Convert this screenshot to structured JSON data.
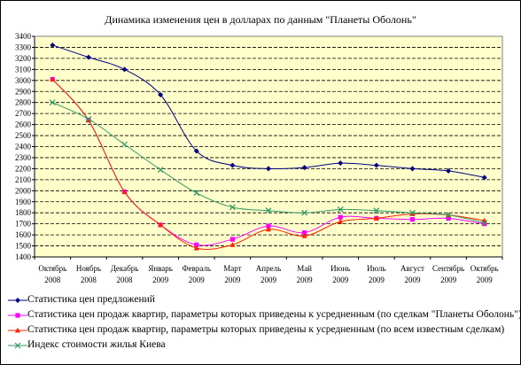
{
  "chart_data": {
    "type": "line",
    "title": "Динамика изменения цен в долларах по данным \"Планеты Оболонь\"",
    "categories": [
      [
        "Октябрь",
        "2008"
      ],
      [
        "Ноябрь",
        "2008"
      ],
      [
        "Декабрь",
        "2008"
      ],
      [
        "Январь",
        "2009"
      ],
      [
        "Февраль",
        "2009"
      ],
      [
        "Март",
        "2009"
      ],
      [
        "Апрель",
        "2009"
      ],
      [
        "Май",
        "2009"
      ],
      [
        "Июнь",
        "2009"
      ],
      [
        "Июль",
        "2009"
      ],
      [
        "Август",
        "2009"
      ],
      [
        "Сентябрь",
        "2009"
      ],
      [
        "Октябрь",
        "2009"
      ]
    ],
    "ylim": [
      1400,
      3400
    ],
    "ytick_step": 100,
    "grid": "horizontal dashed",
    "plot_background": "#ffffcc",
    "legend_position": "bottom",
    "series": [
      {
        "name": "Статистика цен  предложений",
        "color": "#000080",
        "marker": "diamond",
        "values": [
          3320,
          3210,
          3100,
          2870,
          2360,
          2230,
          2200,
          2210,
          2250,
          2230,
          2200,
          2180,
          2120
        ]
      },
      {
        "name": "Статистика цен продаж квартир, параметры которых приведены к усредненным (по сделкам \"Планеты Оболонь\")",
        "color": "#ff00ff",
        "marker": "square",
        "values": [
          3010,
          2640,
          1990,
          1690,
          1510,
          1560,
          1680,
          1620,
          1760,
          1750,
          1740,
          1750,
          1700
        ]
      },
      {
        "name": "Статистика цен продаж квартир, параметры которых приведены к усредненным (по всем известным сделкам)",
        "color": "#ff2000",
        "marker": "triangle",
        "values": [
          3010,
          2640,
          1990,
          1690,
          1480,
          1510,
          1650,
          1590,
          1720,
          1750,
          1790,
          1780,
          1730
        ]
      },
      {
        "name": "Индекс стоимости жилья Киева",
        "color": "#339966",
        "marker": "x",
        "values": [
          2800,
          2650,
          2420,
          2190,
          1980,
          1850,
          1820,
          1800,
          1830,
          1820,
          1800,
          1780,
          1710
        ]
      }
    ]
  }
}
